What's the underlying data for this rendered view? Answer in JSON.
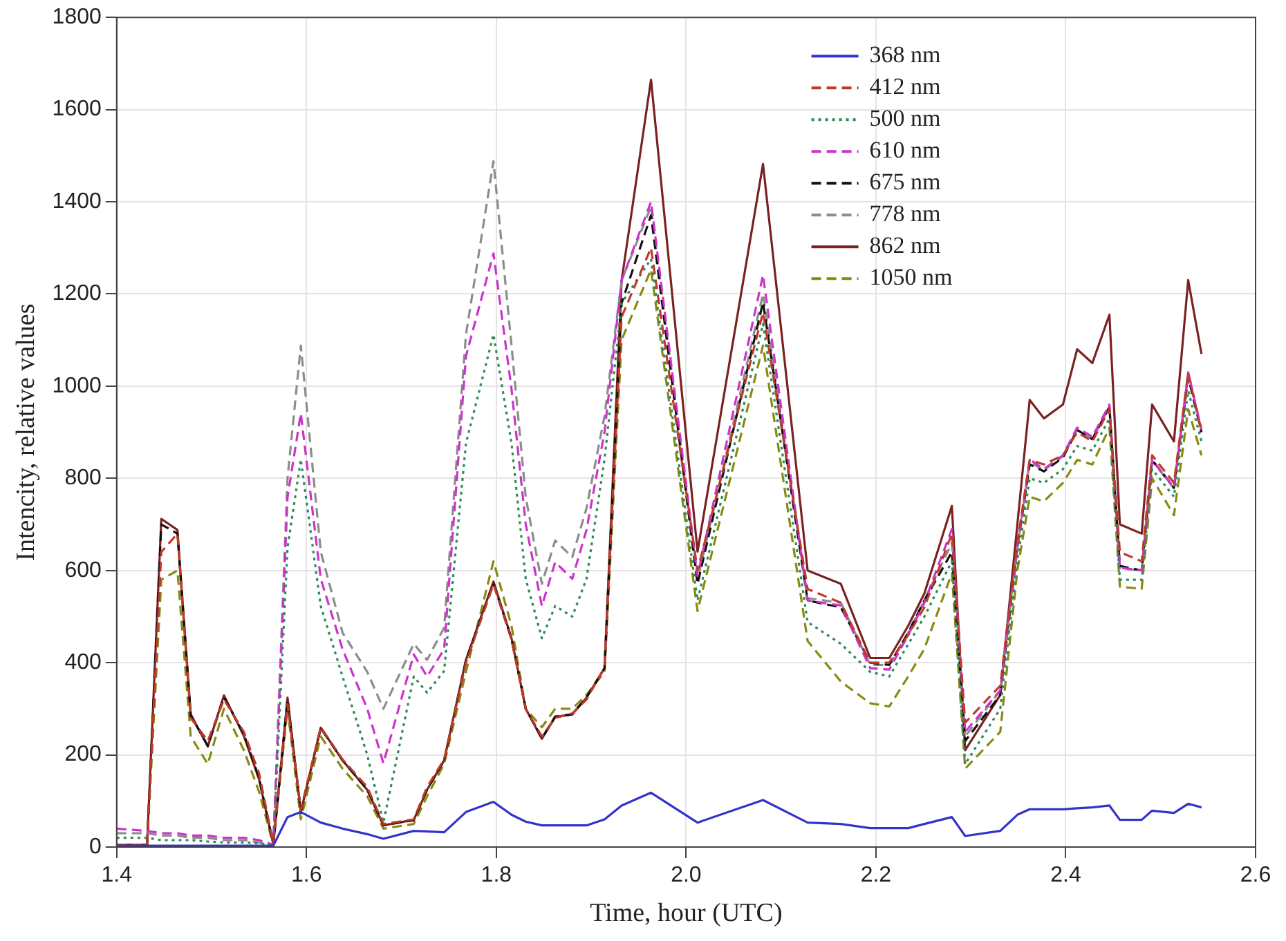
{
  "chart_data": {
    "type": "line",
    "xlabel": "Time, hour (UTC)",
    "ylabel": "Intencity, relative values",
    "x": [
      1.4,
      1.432,
      1.447,
      1.464,
      1.478,
      1.496,
      1.513,
      1.534,
      1.55,
      1.565,
      1.58,
      1.594,
      1.615,
      1.638,
      1.664,
      1.681,
      1.713,
      1.727,
      1.745,
      1.768,
      1.797,
      1.816,
      1.831,
      1.848,
      1.862,
      1.88,
      1.895,
      1.914,
      1.932,
      1.963,
      2.012,
      2.081,
      2.128,
      2.163,
      2.194,
      2.214,
      2.234,
      2.251,
      2.28,
      2.294,
      2.331,
      2.349,
      2.362,
      2.377,
      2.397,
      2.412,
      2.428,
      2.446,
      2.457,
      2.48,
      2.491,
      2.514,
      2.529,
      2.543
    ],
    "series": [
      {
        "name": "368 nm",
        "color": "#3333cc",
        "line_style": "solid",
        "values": [
          3,
          3,
          3,
          3,
          3,
          3,
          3,
          3,
          3,
          3,
          65,
          76,
          53,
          40,
          28,
          18,
          35,
          34,
          32,
          76,
          98,
          70,
          55,
          47,
          47,
          47,
          47,
          60,
          90,
          118,
          53,
          102,
          53,
          50,
          41,
          41,
          41,
          50,
          65,
          24,
          35,
          70,
          82,
          82,
          82,
          84,
          86,
          90,
          59,
          59,
          79,
          74,
          94,
          86
        ]
      },
      {
        "name": "412 nm",
        "color": "#c0392b",
        "line_style": "dashed",
        "values": [
          5,
          5,
          640,
          680,
          280,
          230,
          320,
          250,
          160,
          8,
          310,
          80,
          260,
          190,
          130,
          50,
          60,
          130,
          190,
          400,
          570,
          450,
          300,
          240,
          280,
          290,
          320,
          390,
          1150,
          1300,
          600,
          1160,
          560,
          530,
          400,
          400,
          460,
          520,
          680,
          270,
          350,
          660,
          840,
          830,
          850,
          900,
          880,
          950,
          640,
          620,
          850,
          790,
          1030,
          900
        ]
      },
      {
        "name": "500 nm",
        "color": "#2e8b57",
        "line_style": "dotted",
        "values": [
          20,
          20,
          15,
          15,
          15,
          12,
          10,
          10,
          8,
          5,
          650,
          841,
          523,
          370,
          200,
          53,
          370,
          335,
          382,
          876,
          1112,
          876,
          582,
          453,
          523,
          500,
          582,
          841,
          1180,
          1276,
          535,
          1135,
          488,
          441,
          380,
          370,
          440,
          500,
          620,
          180,
          300,
          620,
          800,
          790,
          820,
          870,
          860,
          930,
          580,
          580,
          820,
          760,
          990,
          880
        ]
      },
      {
        "name": "610 nm",
        "color": "#cc33cc",
        "line_style": "dashed",
        "values": [
          40,
          35,
          30,
          30,
          25,
          25,
          20,
          20,
          15,
          5,
          759,
          941,
          582,
          429,
          300,
          182,
          418,
          370,
          429,
          1065,
          1288,
          994,
          700,
          523,
          618,
          582,
          688,
          900,
          1229,
          1400,
          588,
          1241,
          535,
          524,
          388,
          385,
          460,
          530,
          690,
          250,
          340,
          650,
          841,
          820,
          850,
          910,
          890,
          960,
          606,
          600,
          840,
          780,
          1030,
          906
        ]
      },
      {
        "name": "675 nm",
        "color": "#111111",
        "line_style": "dashed",
        "values": [
          5,
          5,
          700,
          680,
          285,
          220,
          325,
          245,
          150,
          6,
          320,
          78,
          258,
          188,
          125,
          48,
          58,
          125,
          188,
          405,
          572,
          452,
          300,
          236,
          283,
          288,
          325,
          388,
          1180,
          1371,
          571,
          1182,
          535,
          520,
          400,
          395,
          465,
          535,
          640,
          230,
          330,
          650,
          830,
          815,
          845,
          905,
          885,
          955,
          610,
          600,
          840,
          780,
          1020,
          900
        ]
      },
      {
        "name": "778 nm",
        "color": "#8c8c8c",
        "line_style": "dashed",
        "values": [
          30,
          30,
          25,
          25,
          20,
          20,
          15,
          15,
          10,
          5,
          800,
          1088,
          641,
          465,
          380,
          300,
          441,
          406,
          476,
          1112,
          1488,
          1088,
          759,
          571,
          665,
          629,
          735,
          935,
          1229,
          1390,
          580,
          1200,
          540,
          530,
          395,
          395,
          465,
          535,
          660,
          240,
          340,
          650,
          835,
          818,
          848,
          905,
          885,
          955,
          605,
          600,
          838,
          778,
          1025,
          904
        ]
      },
      {
        "name": "862 nm",
        "color": "#7a2222",
        "line_style": "solid",
        "values": [
          5,
          5,
          712,
          688,
          288,
          218,
          329,
          241,
          147,
          6,
          324,
          76,
          259,
          188,
          124,
          47,
          59,
          124,
          188,
          406,
          576,
          453,
          300,
          235,
          282,
          288,
          324,
          388,
          1229,
          1665,
          641,
          1482,
          600,
          571,
          410,
          410,
          480,
          550,
          740,
          210,
          330,
          700,
          970,
          930,
          960,
          1080,
          1050,
          1155,
          700,
          680,
          960,
          880,
          1230,
          1070
        ]
      },
      {
        "name": "1050 nm",
        "color": "#8a8a10",
        "line_style": "dashed",
        "values": [
          5,
          5,
          580,
          600,
          240,
          180,
          300,
          210,
          120,
          5,
          300,
          60,
          240,
          170,
          110,
          40,
          50,
          110,
          180,
          380,
          620,
          480,
          300,
          260,
          300,
          300,
          330,
          380,
          1100,
          1253,
          512,
          1088,
          447,
          359,
          312,
          305,
          370,
          430,
          594,
          170,
          250,
          600,
          760,
          750,
          790,
          840,
          830,
          910,
          565,
          560,
          800,
          720,
          950,
          850
        ]
      }
    ],
    "xlim": [
      1.4,
      2.6
    ],
    "xticks": [
      1.4,
      1.6,
      1.8,
      {
        "value": 2,
        "label": "2.0"
      },
      2.2,
      2.4,
      2.6
    ],
    "ylim": [
      0,
      1800
    ],
    "yticks": [
      0,
      200,
      400,
      600,
      800,
      1000,
      1200,
      1400,
      1600,
      1800
    ],
    "grid": true,
    "legend": "top right",
    "marker": "none"
  }
}
